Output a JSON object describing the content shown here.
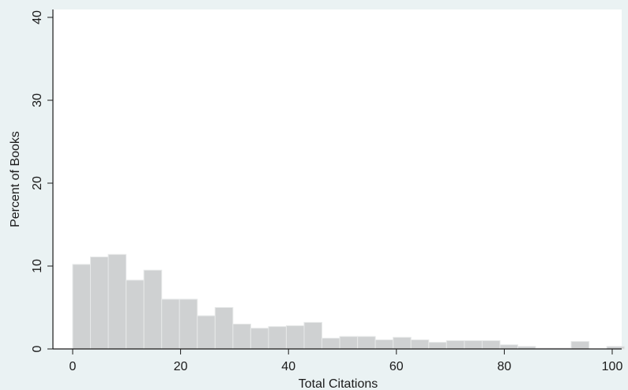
{
  "chart_data": {
    "type": "bar",
    "title": "",
    "xlabel": "Total Citations",
    "ylabel": "Percent of Books",
    "xlim": [
      0,
      100
    ],
    "ylim": [
      0,
      40
    ],
    "x_ticks": [
      "0",
      "20",
      "40",
      "60",
      "80",
      "100"
    ],
    "y_ticks": [
      "0",
      "10",
      "20",
      "30",
      "40"
    ],
    "bin_width": 3.3,
    "bin_start": 0,
    "values": [
      10.2,
      11.1,
      11.4,
      8.3,
      9.5,
      6.0,
      6.0,
      4.0,
      5.0,
      3.0,
      2.5,
      2.7,
      2.8,
      3.2,
      1.3,
      1.5,
      1.5,
      1.1,
      1.4,
      1.1,
      0.8,
      1.0,
      1.0,
      1.0,
      0.5,
      0.3,
      0.1,
      0.1,
      0.9,
      0.0,
      0.3
    ],
    "colors": {
      "bar": "#cfd1d2",
      "bar_edge": "#e6e8e8",
      "plot_bg": "#ffffff",
      "outer_bg": "#eaf2f3",
      "axis": "#1a1a1a"
    }
  }
}
